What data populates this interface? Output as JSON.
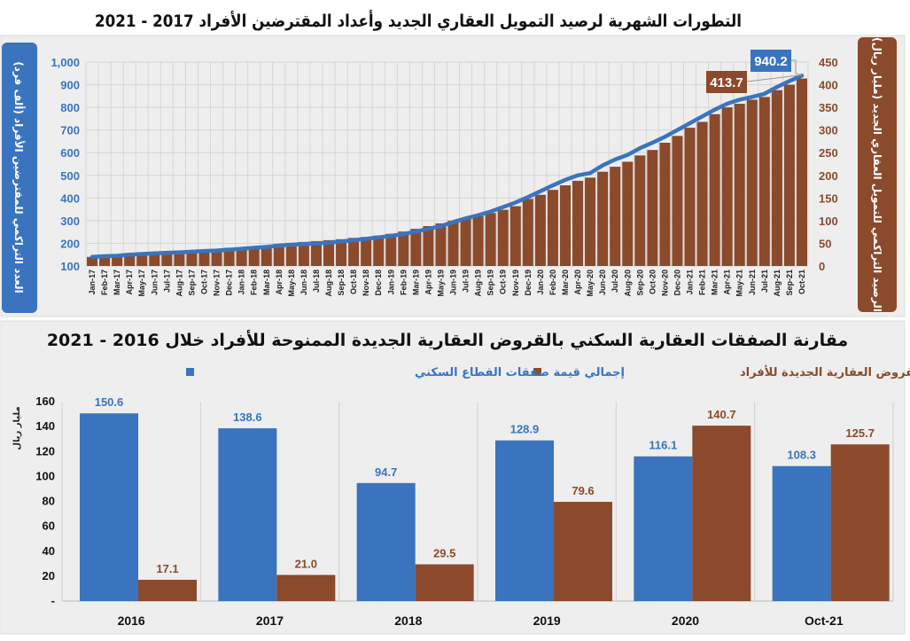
{
  "colors": {
    "blue": "#3a74be",
    "brown": "#8b4a2b",
    "panel": "#eeeeee",
    "grid": "#d6d6d6"
  },
  "chart_data": [
    {
      "type": "bar+line",
      "title": "التطورات الشهرية لرصيد التمويل العقاري الجديد وأعداد المقترضين الأفراد 2017 - 2021",
      "ylabel_left": "العدد التراكمي للمقترضين الأفراد (ألف فرد)",
      "ylabel_right": "الرصيد التراكمي للتمويل العقاري الجديد (مليار ريال)",
      "ylim_left": [
        100,
        1000
      ],
      "ylim_right": [
        0,
        450
      ],
      "yticks_left": [
        "100",
        "200",
        "300",
        "400",
        "500",
        "600",
        "700",
        "800",
        "900",
        "1,000"
      ],
      "yticks_right": [
        "0",
        "50",
        "100",
        "150",
        "200",
        "250",
        "300",
        "350",
        "400",
        "450"
      ],
      "grid": true,
      "categories": [
        "Jan-17",
        "Feb-17",
        "Mar-17",
        "Apr-17",
        "May-17",
        "Jun-17",
        "Jul-17",
        "Aug-17",
        "Sep-17",
        "Oct-17",
        "Nov-17",
        "Dec-17",
        "Jan-18",
        "Feb-18",
        "Mar-18",
        "Apr-18",
        "May-18",
        "Jun-18",
        "Jul-18",
        "Aug-18",
        "Sep-18",
        "Oct-18",
        "Nov-18",
        "Dec-18",
        "Jan-19",
        "Feb-19",
        "Mar-19",
        "Apr-19",
        "May-19",
        "Jun-19",
        "Jul-19",
        "Aug-19",
        "Sep-19",
        "Oct-19",
        "Nov-19",
        "Dec-19",
        "Jan-20",
        "Feb-20",
        "Mar-20",
        "Apr-20",
        "May-20",
        "Jun-20",
        "Jul-20",
        "Aug-20",
        "Sep-20",
        "Oct-20",
        "Nov-20",
        "Dec-20",
        "Jan-21",
        "Feb-21",
        "Mar-21",
        "Apr-21",
        "May-21",
        "Jun-21",
        "Jul-21",
        "Aug-21",
        "Sep-21",
        "Oct-21"
      ],
      "series": [
        {
          "axis": "right",
          "kind": "bar",
          "color": "#8b4a2b",
          "values": [
            20,
            22,
            24,
            26,
            28,
            29,
            31,
            32,
            34,
            36,
            37,
            40,
            41,
            43,
            45,
            49,
            51,
            53,
            55,
            57,
            59,
            62,
            64,
            67,
            71,
            76,
            82,
            88,
            94,
            100,
            105,
            110,
            117,
            124,
            132,
            148,
            157,
            168,
            178,
            188,
            195,
            208,
            219,
            230,
            244,
            256,
            272,
            287,
            305,
            318,
            335,
            350,
            358,
            367,
            373,
            388,
            400,
            413.7
          ]
        },
        {
          "axis": "left",
          "kind": "line",
          "color": "#3a74be",
          "values": [
            140,
            143,
            145,
            150,
            153,
            156,
            158,
            160,
            163,
            166,
            168,
            172,
            176,
            180,
            184,
            190,
            194,
            197,
            200,
            203,
            208,
            214,
            220,
            226,
            233,
            241,
            252,
            264,
            276,
            294,
            310,
            324,
            340,
            360,
            380,
            404,
            430,
            456,
            480,
            500,
            510,
            544,
            570,
            590,
            620,
            644,
            670,
            700,
            730,
            760,
            790,
            816,
            834,
            846,
            860,
            890,
            916,
            940.2
          ]
        }
      ],
      "data_labels": {
        "line_last": "940.2",
        "bar_last": "413.7"
      }
    },
    {
      "type": "bar",
      "title": "مقارنة الصفقات العقارية السكني بالقروض العقارية الجديدة الممنوحة للأفراد خلال 2016 - 2021",
      "ylabel": "مليار ريال",
      "ylim": [
        0,
        160
      ],
      "yticks": [
        "-",
        "20",
        "40",
        "60",
        "80",
        "100",
        "120",
        "140",
        "160"
      ],
      "legend_placement": "top",
      "categories": [
        "2016",
        "2017",
        "2018",
        "2019",
        "2020",
        "Oct-21"
      ],
      "series": [
        {
          "name": "إجمالي قيمة صفقات القطاع السكني",
          "color": "#3a74be",
          "values": [
            150.6,
            138.6,
            94.7,
            128.9,
            116.1,
            108.3
          ],
          "labels": [
            "150.6",
            "138.6",
            "94.7",
            "128.9",
            "116.1",
            "108.3"
          ]
        },
        {
          "name": "القروض العقارية الجديدة للأفراد",
          "color": "#8b4a2b",
          "values": [
            17.1,
            21.0,
            29.5,
            79.6,
            140.7,
            125.7
          ],
          "labels": [
            "17.1",
            "21.0",
            "29.5",
            "79.6",
            "140.7",
            "125.7"
          ]
        }
      ]
    }
  ]
}
